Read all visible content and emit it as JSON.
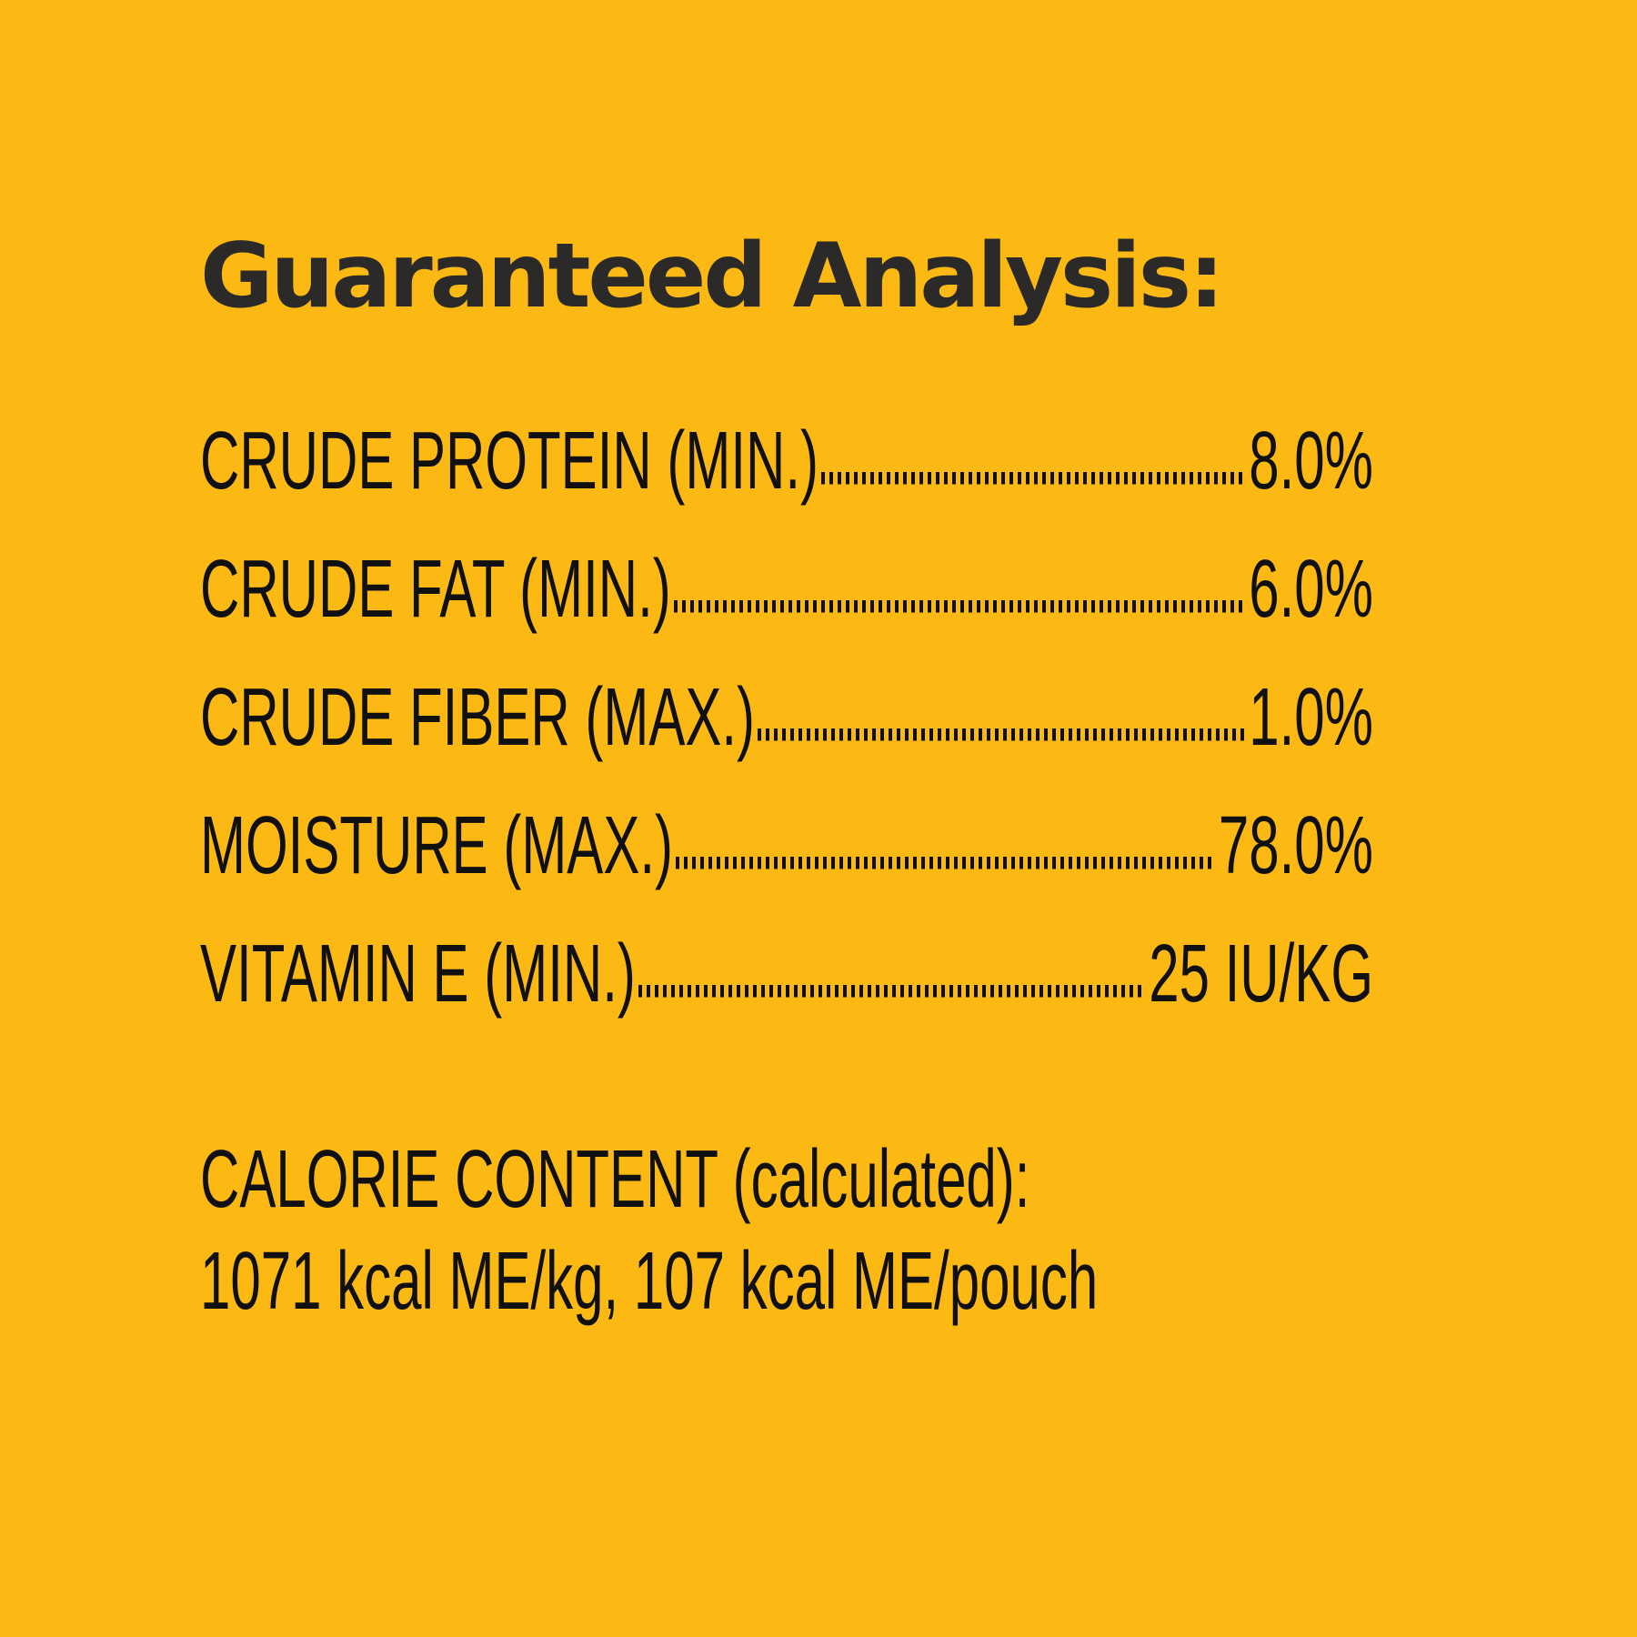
{
  "panel": {
    "title": "Guaranteed Analysis:",
    "rows": [
      {
        "name": "CRUDE PROTEIN (MIN.)",
        "value": "8.0%"
      },
      {
        "name": "CRUDE FAT (MIN.)",
        "value": "6.0%"
      },
      {
        "name": "CRUDE FIBER (MAX.)",
        "value": "1.0%"
      },
      {
        "name": "MOISTURE (MAX.)",
        "value": "78.0%"
      },
      {
        "name": "VITAMIN E (MIN.)",
        "value": "25 IU/KG"
      }
    ],
    "calorie_content": {
      "heading": "CALORIE CONTENT (calculated):",
      "values": "1071 kcal ME/kg, 107 kcal ME/pouch"
    },
    "colors": {
      "background": "#FCB813",
      "body_text": "#101010",
      "title_text": "#2B2A28"
    }
  }
}
